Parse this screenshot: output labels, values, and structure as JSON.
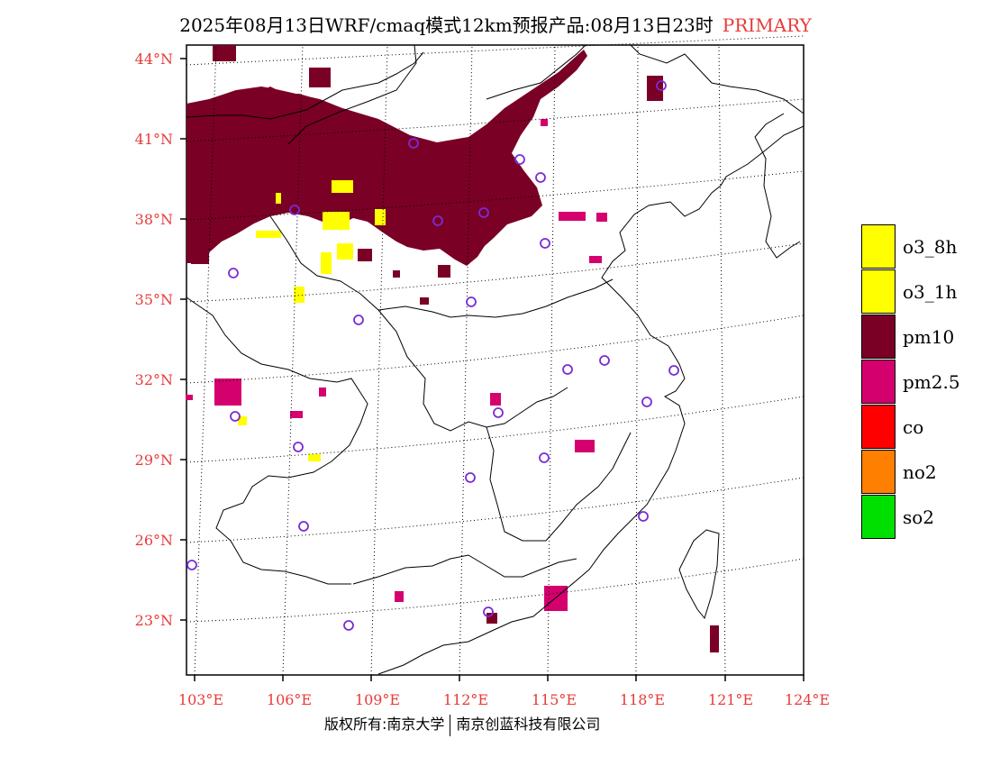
{
  "title": {
    "text": "2025年08月13日WRF/cmaq模式12km预报产品:08月13日23时",
    "tag": "PRIMARY"
  },
  "axes": {
    "lat_labels": [
      "44°N",
      "41°N",
      "38°N",
      "35°N",
      "32°N",
      "29°N",
      "26°N",
      "23°N"
    ],
    "lon_labels": [
      "103°E",
      "106°E",
      "109°E",
      "112°E",
      "115°E",
      "118°E",
      "121°E",
      "124°E"
    ],
    "label_color": "#e83a3a"
  },
  "legend": {
    "items": [
      {
        "label": "o3_8h",
        "color": "#ffff00"
      },
      {
        "label": "o3_1h",
        "color": "#ffff00"
      },
      {
        "label": "pm10",
        "color": "#7a0026"
      },
      {
        "label": "pm2.5",
        "color": "#d4006e"
      },
      {
        "label": "co",
        "color": "#ff0000"
      },
      {
        "label": "no2",
        "color": "#ff7f00"
      },
      {
        "label": "so2",
        "color": "#00e000"
      }
    ]
  },
  "footer": {
    "left": "版权所有:南京大学",
    "right": "南京创蓝科技有限公司"
  },
  "colors": {
    "pm10": "#7a0026",
    "pm25": "#d4006e",
    "o3": "#ffff00",
    "station": "#7b2bd6",
    "grid": "#000000"
  }
}
